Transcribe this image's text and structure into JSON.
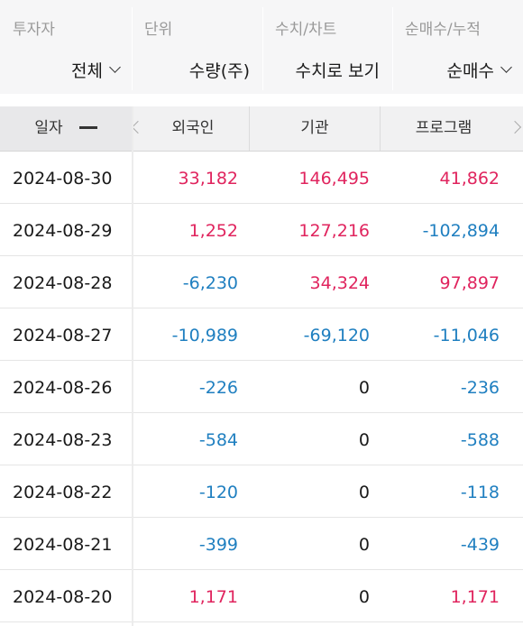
{
  "filters": [
    {
      "label": "투자자",
      "value": "전체",
      "dropdown": true
    },
    {
      "label": "단위",
      "value": "수량(주)",
      "dropdown": false
    },
    {
      "label": "수치/차트",
      "value": "수치로 보기",
      "dropdown": false
    },
    {
      "label": "순매수/누적",
      "value": "순매수",
      "dropdown": true
    }
  ],
  "table": {
    "headers": {
      "date": "일자",
      "foreign": "외국인",
      "institution": "기관",
      "program": "프로그램"
    },
    "rows": [
      {
        "date": "2024-08-30",
        "foreign": "33,182",
        "institution": "146,495",
        "program": "41,862"
      },
      {
        "date": "2024-08-29",
        "foreign": "1,252",
        "institution": "127,216",
        "program": "-102,894"
      },
      {
        "date": "2024-08-28",
        "foreign": "-6,230",
        "institution": "34,324",
        "program": "97,897"
      },
      {
        "date": "2024-08-27",
        "foreign": "-10,989",
        "institution": "-69,120",
        "program": "-11,046"
      },
      {
        "date": "2024-08-26",
        "foreign": "-226",
        "institution": "0",
        "program": "-236"
      },
      {
        "date": "2024-08-23",
        "foreign": "-584",
        "institution": "0",
        "program": "-588"
      },
      {
        "date": "2024-08-22",
        "foreign": "-120",
        "institution": "0",
        "program": "-118"
      },
      {
        "date": "2024-08-21",
        "foreign": "-399",
        "institution": "0",
        "program": "-439"
      },
      {
        "date": "2024-08-20",
        "foreign": "1,171",
        "institution": "0",
        "program": "1,171"
      }
    ]
  },
  "colors": {
    "positive": "#e0245e",
    "negative": "#1f7fc0",
    "zero": "#1a1a1a"
  }
}
